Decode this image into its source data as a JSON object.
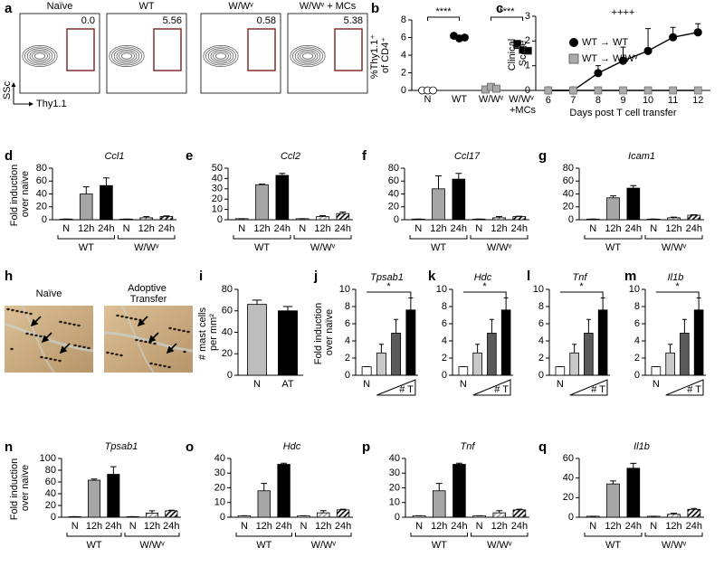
{
  "chart_data": [
    {
      "panel": "a",
      "type": "flow",
      "titles": [
        "Naïve",
        "WT",
        "W/Wᵛ",
        "W/Wᵛ + MCs"
      ],
      "gates": [
        "0.0",
        "5.56",
        "0.58",
        "5.38"
      ],
      "xlabel": "Thy1.1",
      "ylabel": "SSc"
    },
    {
      "panel": "b",
      "type": "dot",
      "categories": [
        "N",
        "WT",
        "W/Wᵛ",
        "W/Wᵛ +MCs"
      ],
      "points": [
        [
          0,
          0,
          0
        ],
        [
          6.2,
          5.9,
          6.0
        ],
        [
          0.1,
          0.4,
          0.2
        ],
        [
          5.3,
          4.6,
          4.5
        ]
      ],
      "means": [
        0,
        6.0,
        0.2,
        4.8
      ],
      "markers": [
        "circle",
        "circle",
        "square",
        "square"
      ],
      "colors": [
        "#ffffff",
        "#000000",
        "#aaaaaa",
        "#000000"
      ],
      "ylabel": "%Thy1.1⁺ of CD4⁺",
      "ylim": [
        0,
        8
      ],
      "yticks": [
        0,
        2,
        4,
        6,
        8
      ],
      "annotations": [
        "****",
        "****"
      ]
    },
    {
      "panel": "c",
      "type": "line",
      "x": [
        6,
        7,
        8,
        9,
        10,
        11,
        12
      ],
      "xlim": [
        5.5,
        12.5
      ],
      "xticks": [
        6,
        7,
        8,
        9,
        10,
        11,
        12
      ],
      "ylim": [
        0,
        3
      ],
      "yticks": [
        0,
        1,
        2,
        3
      ],
      "xlabel": "Days post T cell transfer",
      "ylabel": "Clinical Score",
      "legend": "center left",
      "annotations": [
        "++++"
      ],
      "series": [
        {
          "name": "WT → WT",
          "color": "#000000",
          "marker": "circle",
          "values": [
            0,
            0,
            0.7,
            1.2,
            1.6,
            2.15,
            2.35
          ],
          "errors": [
            0,
            0,
            0.3,
            0.55,
            0.9,
            0.4,
            0.35
          ]
        },
        {
          "name": "WT → W/Wᵛ",
          "color": "#aaaaaa",
          "marker": "square",
          "values": [
            0,
            0,
            0,
            0,
            0,
            0,
            0
          ]
        }
      ]
    },
    {
      "panel": "d",
      "type": "bar",
      "title": "Ccl1",
      "ylabel": "Fold induction over naïve",
      "categories": [
        "N",
        "12h",
        "24h",
        "N",
        "12h",
        "24h"
      ],
      "groups": [
        "WT",
        "W/Wᵛ"
      ],
      "values": [
        1,
        40,
        53,
        1,
        3,
        5
      ],
      "errors": [
        0,
        11,
        12,
        0,
        2,
        1
      ],
      "colors": [
        "#ffffff",
        "#a6a6a6",
        "#000000",
        "#ffffff",
        "#a6a6a6",
        "#000000"
      ],
      "hatch": [
        false,
        false,
        false,
        false,
        true,
        true
      ],
      "ylim": [
        0,
        80
      ],
      "yticks": [
        0,
        20,
        40,
        60,
        80
      ]
    },
    {
      "panel": "e",
      "type": "bar",
      "title": "Ccl2",
      "categories": [
        "N",
        "12h",
        "24h",
        "N",
        "12h",
        "24h"
      ],
      "groups": [
        "WT",
        "W/Wᵛ"
      ],
      "values": [
        1,
        34,
        43,
        1,
        3,
        6
      ],
      "errors": [
        0,
        0.5,
        2,
        0,
        1,
        1.5
      ],
      "colors": [
        "#ffffff",
        "#a6a6a6",
        "#000000",
        "#ffffff",
        "#a6a6a6",
        "#000000"
      ],
      "hatch": [
        false,
        false,
        false,
        false,
        true,
        true
      ],
      "ylim": [
        0,
        50
      ],
      "yticks": [
        0,
        10,
        20,
        30,
        40,
        50
      ]
    },
    {
      "panel": "f",
      "type": "bar",
      "title": "Ccl17",
      "categories": [
        "N",
        "12h",
        "24h",
        "N",
        "12h",
        "24h"
      ],
      "groups": [
        "WT",
        "W/Wᵛ"
      ],
      "values": [
        1,
        48,
        63,
        1,
        3,
        5
      ],
      "errors": [
        0,
        20,
        9,
        0,
        2,
        0.5
      ],
      "colors": [
        "#ffffff",
        "#a6a6a6",
        "#000000",
        "#ffffff",
        "#a6a6a6",
        "#000000"
      ],
      "hatch": [
        false,
        false,
        false,
        false,
        true,
        true
      ],
      "ylim": [
        0,
        80
      ],
      "yticks": [
        0,
        20,
        40,
        60,
        80
      ]
    },
    {
      "panel": "g",
      "type": "bar",
      "title": "Icam1",
      "categories": [
        "N",
        "12h",
        "24h",
        "N",
        "12h",
        "24h"
      ],
      "groups": [
        "WT",
        "W/Wᵛ"
      ],
      "values": [
        1,
        34,
        49,
        1,
        3,
        7
      ],
      "errors": [
        0,
        3,
        4,
        0,
        1,
        0.8
      ],
      "colors": [
        "#ffffff",
        "#a6a6a6",
        "#000000",
        "#ffffff",
        "#a6a6a6",
        "#000000"
      ],
      "hatch": [
        false,
        false,
        false,
        false,
        true,
        true
      ],
      "ylim": [
        0,
        80
      ],
      "yticks": [
        0,
        20,
        40,
        60,
        80
      ]
    },
    {
      "panel": "h",
      "type": "image",
      "labels": [
        "Naïve",
        "Adoptive Transfer"
      ]
    },
    {
      "panel": "i",
      "type": "bar",
      "ylabel": "# mast cells per mm²",
      "categories": [
        "N",
        "AT"
      ],
      "values": [
        66,
        60
      ],
      "errors": [
        4,
        4
      ],
      "colors": [
        "#bdbdbd",
        "#000000"
      ],
      "ylim": [
        0,
        80
      ],
      "yticks": [
        0,
        20,
        40,
        60,
        80
      ]
    },
    {
      "panel": "j",
      "type": "bar",
      "title": "Tpsab1",
      "ylabel": "Fold induction over naïve",
      "categories": [
        "N",
        null,
        null,
        null
      ],
      "values": [
        1,
        2.6,
        4.9,
        7.6
      ],
      "errors": [
        0,
        1,
        1.6,
        1.4
      ],
      "colors": [
        "#ffffff",
        "#c8c8c8",
        "#5a5a5a",
        "#000000"
      ],
      "ylim": [
        0,
        10
      ],
      "yticks": [
        0,
        2,
        4,
        6,
        8,
        10
      ],
      "annotations": [
        "*"
      ],
      "ramp_label": "# T"
    },
    {
      "panel": "k",
      "type": "bar",
      "title": "Hdc",
      "categories": [
        "N",
        null,
        null,
        null
      ],
      "values": [
        1,
        2.6,
        4.9,
        7.6
      ],
      "errors": [
        0,
        1,
        1.6,
        1.4
      ],
      "colors": [
        "#ffffff",
        "#c8c8c8",
        "#5a5a5a",
        "#000000"
      ],
      "ylim": [
        0,
        10
      ],
      "yticks": [
        0,
        2,
        4,
        6,
        8,
        10
      ],
      "annotations": [
        "*"
      ],
      "ramp_label": "# T"
    },
    {
      "panel": "l",
      "type": "bar",
      "title": "Tnf",
      "categories": [
        "N",
        null,
        null,
        null
      ],
      "values": [
        1,
        2.6,
        4.9,
        7.6
      ],
      "errors": [
        0,
        1,
        1.6,
        1.4
      ],
      "colors": [
        "#ffffff",
        "#c8c8c8",
        "#5a5a5a",
        "#000000"
      ],
      "ylim": [
        0,
        10
      ],
      "yticks": [
        0,
        2,
        4,
        6,
        8,
        10
      ],
      "annotations": [
        "*"
      ],
      "ramp_label": "# T"
    },
    {
      "panel": "m",
      "type": "bar",
      "title": "Il1b",
      "categories": [
        "N",
        null,
        null,
        null
      ],
      "values": [
        1,
        2.6,
        4.9,
        7.6
      ],
      "errors": [
        0,
        1,
        1.6,
        1.4
      ],
      "colors": [
        "#ffffff",
        "#c8c8c8",
        "#5a5a5a",
        "#000000"
      ],
      "ylim": [
        0,
        10
      ],
      "yticks": [
        0,
        2,
        4,
        6,
        8,
        10
      ],
      "annotations": [
        "*"
      ],
      "ramp_label": "# T"
    },
    {
      "panel": "n",
      "type": "bar",
      "title": "Tpsab1",
      "ylabel": "Fold induction over naïve",
      "categories": [
        "N",
        "12h",
        "24h",
        "N",
        "12h",
        "24h"
      ],
      "groups": [
        "WT",
        "W/Wᵛ"
      ],
      "values": [
        1,
        63,
        73,
        1,
        7,
        11
      ],
      "errors": [
        0,
        2,
        13,
        0,
        4,
        1
      ],
      "colors": [
        "#ffffff",
        "#a6a6a6",
        "#000000",
        "#ffffff",
        "#a6a6a6",
        "#000000"
      ],
      "hatch": [
        false,
        false,
        false,
        false,
        true,
        true
      ],
      "ylim": [
        0,
        100
      ],
      "yticks": [
        0,
        20,
        40,
        60,
        80,
        100
      ]
    },
    {
      "panel": "o",
      "type": "bar",
      "title": "Hdc",
      "categories": [
        "N",
        "12h",
        "24h",
        "N",
        "12h",
        "24h"
      ],
      "groups": [
        "WT",
        "W/Wᵛ"
      ],
      "values": [
        1,
        18,
        36,
        1,
        3,
        5
      ],
      "errors": [
        0,
        5,
        0.8,
        0,
        1.5,
        0.5
      ],
      "colors": [
        "#ffffff",
        "#a6a6a6",
        "#000000",
        "#ffffff",
        "#a6a6a6",
        "#000000"
      ],
      "hatch": [
        false,
        false,
        false,
        false,
        true,
        true
      ],
      "ylim": [
        0,
        40
      ],
      "yticks": [
        0,
        10,
        20,
        30,
        40
      ]
    },
    {
      "panel": "p",
      "type": "bar",
      "title": "Tnf",
      "categories": [
        "N",
        "12h",
        "24h",
        "N",
        "12h",
        "24h"
      ],
      "groups": [
        "WT",
        "W/Wᵛ"
      ],
      "values": [
        1,
        18,
        36,
        1,
        3,
        5
      ],
      "errors": [
        0,
        5,
        0.8,
        0,
        1.5,
        0.5
      ],
      "colors": [
        "#ffffff",
        "#a6a6a6",
        "#000000",
        "#ffffff",
        "#a6a6a6",
        "#000000"
      ],
      "hatch": [
        false,
        false,
        false,
        false,
        true,
        true
      ],
      "ylim": [
        0,
        40
      ],
      "yticks": [
        0,
        10,
        20,
        30,
        40
      ]
    },
    {
      "panel": "q",
      "type": "bar",
      "title": "Il1b",
      "categories": [
        "N",
        "12h",
        "24h",
        "N",
        "12h",
        "24h"
      ],
      "groups": [
        "WT",
        "W/Wᵛ"
      ],
      "values": [
        1,
        34,
        50,
        1,
        3,
        8
      ],
      "errors": [
        0,
        3,
        5,
        0,
        1,
        1
      ],
      "colors": [
        "#ffffff",
        "#a6a6a6",
        "#000000",
        "#ffffff",
        "#a6a6a6",
        "#000000"
      ],
      "hatch": [
        false,
        false,
        false,
        false,
        true,
        true
      ],
      "ylim": [
        0,
        60
      ],
      "yticks": [
        0,
        20,
        40,
        60
      ]
    }
  ]
}
